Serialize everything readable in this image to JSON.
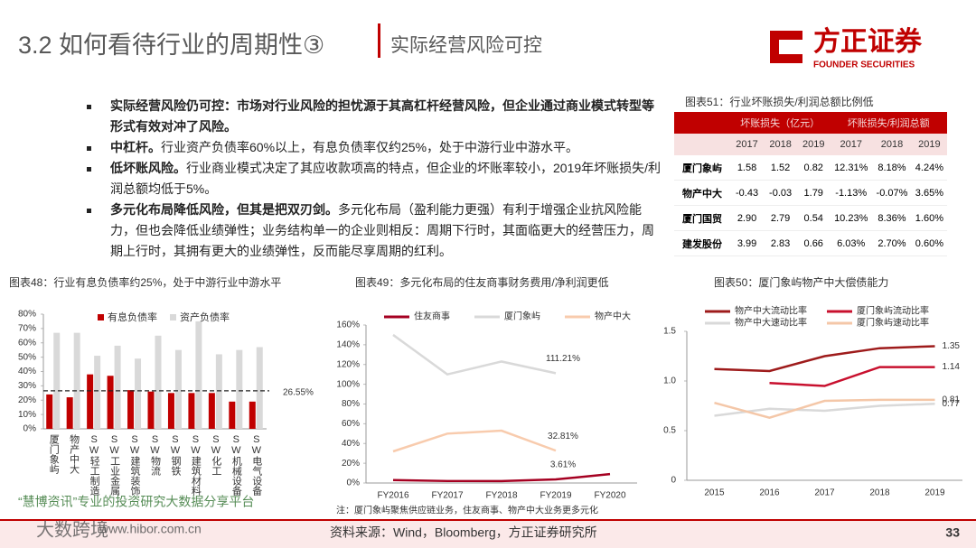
{
  "header": {
    "title": "3.2 如何看待行业的周期性③",
    "subtitle": "实际经营风险可控",
    "logo_name": "方正证券",
    "logo_en": "FOUNDER SECURITIES"
  },
  "bullets": [
    {
      "lead": "实际经营风险仍可控：市场对行业风险的担忧源于其高杠杆经营风险，但企业通过商业模式转型等形式有效对冲了风险。"
    },
    {
      "lead": "中杠杆。",
      "text": "行业资产负债率60%以上，有息负债率仅约25%，处于中游行业中游水平。"
    },
    {
      "lead": "低坏账风险。",
      "text": "行业商业模式决定了其应收款项高的特点，但企业的坏账率较小，2019年坏账损失/利润总额均低于5%。"
    },
    {
      "lead": "多元化布局降低风险，但其是把双刃剑。",
      "text": "多元化布局（盈利能力更强）有利于增强企业抗风险能力，但也会降低业绩弹性；业务结构单一的企业则相反：周期下行时，其面临更大的经营压力，周期上行时，其拥有更大的业绩弹性，反而能尽享周期的红利。"
    }
  ],
  "table": {
    "caption": "图表51：行业坏账损失/利润总额比例低",
    "group_headers": [
      "坏账损失（亿元）",
      "坏账损失/利润总额"
    ],
    "years": [
      "2017",
      "2018",
      "2019",
      "2017",
      "2018",
      "2019"
    ],
    "rows": [
      [
        "厦门象屿",
        "1.58",
        "1.52",
        "0.82",
        "12.31%",
        "8.18%",
        "4.24%"
      ],
      [
        "物产中大",
        "-0.43",
        "-0.03",
        "1.79",
        "-1.13%",
        "-0.07%",
        "3.65%"
      ],
      [
        "厦门国贸",
        "2.90",
        "2.79",
        "0.54",
        "10.23%",
        "8.36%",
        "1.60%"
      ],
      [
        "建发股份",
        "3.99",
        "2.83",
        "0.66",
        "6.03%",
        "2.70%",
        "0.60%"
      ]
    ]
  },
  "chart_data": [
    {
      "type": "bar",
      "title": "图表48：行业有息负债率约25%，处于中游行业中游水平",
      "categories": [
        "厦门象屿",
        "物产中大",
        "SW轻工制造",
        "SW工业金属",
        "SW建筑装饰",
        "SW物流",
        "SW钢铁",
        "SW建筑材料",
        "SW化工",
        "SW机械设备",
        "SW电气设备"
      ],
      "series": [
        {
          "name": "有息负债率",
          "color": "#c00000",
          "values": [
            24,
            22,
            38,
            37,
            27,
            26,
            25,
            25,
            25,
            19,
            19
          ]
        },
        {
          "name": "资产负债率",
          "color": "#d9d9d9",
          "values": [
            67,
            67,
            51,
            58,
            49,
            65,
            55,
            75,
            52,
            55,
            57
          ]
        }
      ],
      "ylim": [
        0,
        80
      ],
      "yticks": [
        {
          "value": 0,
          "label": "0%"
        },
        {
          "value": 10,
          "label": "10%"
        },
        {
          "value": 20,
          "label": "20%"
        },
        {
          "value": 30,
          "label": "30%"
        },
        {
          "value": 40,
          "label": "40%"
        },
        {
          "value": 50,
          "label": "50%"
        },
        {
          "value": 60,
          "label": "60%"
        },
        {
          "value": 70,
          "label": "70%"
        },
        {
          "value": 80,
          "label": "80%"
        }
      ],
      "reference_line": {
        "value": 26.55,
        "label": "26.55%"
      },
      "grid": false
    },
    {
      "type": "line",
      "title": "图表49：多元化布局的住友商事财务费用/净利润更低",
      "categories": [
        "FY2016",
        "FY2017",
        "FY2018",
        "FY2019",
        "FY2020"
      ],
      "series": [
        {
          "name": "住友商事",
          "color": "#a50021",
          "values": [
            3,
            2,
            2,
            3.61,
            9
          ],
          "value_labels": [
            null,
            null,
            null,
            "3.61%",
            null
          ]
        },
        {
          "name": "厦门象屿",
          "color": "#d9d9d9",
          "values": [
            150,
            110,
            123,
            111.21,
            null
          ],
          "value_labels": [
            null,
            null,
            null,
            "111.21%",
            null
          ]
        },
        {
          "name": "物产中大",
          "color": "#f8cbad",
          "values": [
            32,
            50,
            53,
            32.81,
            null
          ],
          "value_labels": [
            null,
            null,
            null,
            "32.81%",
            null
          ]
        }
      ],
      "ylim": [
        0,
        160
      ],
      "yticks": [
        {
          "value": 0,
          "label": "0%"
        },
        {
          "value": 20,
          "label": "20%"
        },
        {
          "value": 40,
          "label": "40%"
        },
        {
          "value": 60,
          "label": "60%"
        },
        {
          "value": 80,
          "label": "80%"
        },
        {
          "value": 100,
          "label": "100%"
        },
        {
          "value": 120,
          "label": "120%"
        },
        {
          "value": 140,
          "label": "140%"
        },
        {
          "value": 160,
          "label": "160%"
        }
      ],
      "note": "注：厦门象屿聚焦供应链业务，住友商事、物产中大业务更多元化",
      "grid": false
    },
    {
      "type": "line",
      "title": "图表50：厦门象屿物产中大偿债能力",
      "categories": [
        "2015",
        "2016",
        "2017",
        "2018",
        "2019"
      ],
      "series": [
        {
          "name": "物产中大流动比率",
          "color": "#9e1b1b",
          "values": [
            1.12,
            1.1,
            1.25,
            1.33,
            1.35
          ],
          "value_labels": [
            null,
            null,
            null,
            null,
            "1.35"
          ]
        },
        {
          "name": "厦门象屿流动比率",
          "color": "#c8102e",
          "values": [
            null,
            0.98,
            0.95,
            1.14,
            1.14
          ],
          "value_labels": [
            null,
            null,
            null,
            null,
            "1.14"
          ]
        },
        {
          "name": "物产中大速动比率",
          "color": "#d9d9d9",
          "values": [
            0.65,
            0.72,
            0.7,
            0.75,
            0.77
          ],
          "value_labels": [
            null,
            null,
            null,
            null,
            "0.77"
          ]
        },
        {
          "name": "厦门象屿速动比率",
          "color": "#f4c7a8",
          "values": [
            0.78,
            0.63,
            0.8,
            0.81,
            0.81
          ],
          "value_labels": [
            null,
            null,
            null,
            null,
            "0.81"
          ]
        }
      ],
      "ylim": [
        0,
        1.5
      ],
      "yticks": [
        0,
        0.5,
        {
          "value": 1,
          "label": "1.0"
        },
        1.5
      ],
      "grid": false
    }
  ],
  "footer": {
    "source": "资料来源：Wind，Bloomberg，方正证券研究所",
    "page": "33"
  },
  "watermark": {
    "slogan": "“慧博资讯”专业的投资研究大数据分享平台",
    "url": "www.hibor.com.cn",
    "brand": "大数跨境"
  }
}
